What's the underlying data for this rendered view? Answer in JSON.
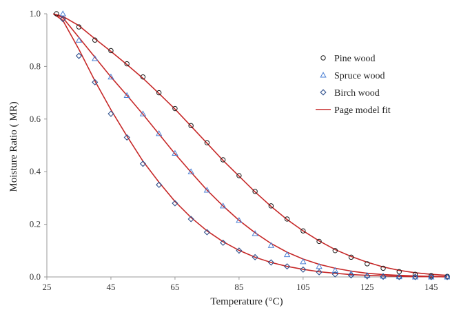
{
  "chart_data": {
    "type": "scatter",
    "title": "",
    "xlabel": "Temperature (°C)",
    "ylabel": "Moisture Ratio ( MR)",
    "xlim": [
      25,
      150
    ],
    "ylim": [
      0,
      1.0
    ],
    "x_ticks": [
      "25",
      "45",
      "65",
      "85",
      "105",
      "125",
      "145"
    ],
    "y_ticks": [
      "0.0",
      "0.2",
      "0.4",
      "0.6",
      "0.8",
      "1.0"
    ],
    "grid": false,
    "legend_position": "right",
    "series": [
      {
        "name": "Pine wood",
        "marker": "circle",
        "color": "#1a1a1a",
        "x": [
          28,
          35,
          40,
          45,
          50,
          55,
          60,
          65,
          70,
          75,
          80,
          85,
          90,
          95,
          100,
          105,
          110,
          115,
          120,
          125,
          130,
          135,
          140,
          145,
          150
        ],
        "y": [
          1.0,
          0.95,
          0.9,
          0.86,
          0.81,
          0.76,
          0.7,
          0.64,
          0.575,
          0.51,
          0.445,
          0.385,
          0.325,
          0.27,
          0.22,
          0.175,
          0.135,
          0.1,
          0.075,
          0.05,
          0.033,
          0.02,
          0.01,
          0.005,
          0.002
        ]
      },
      {
        "name": "Spruce wood",
        "marker": "triangle",
        "color": "#4a7fd4",
        "x": [
          30,
          35,
          40,
          45,
          50,
          55,
          60,
          65,
          70,
          75,
          80,
          85,
          90,
          95,
          100,
          105,
          110,
          115,
          120,
          125,
          130,
          135,
          140,
          145,
          150
        ],
        "y": [
          1.0,
          0.9,
          0.83,
          0.76,
          0.69,
          0.62,
          0.545,
          0.47,
          0.4,
          0.33,
          0.27,
          0.215,
          0.165,
          0.12,
          0.085,
          0.058,
          0.04,
          0.025,
          0.013,
          0.006,
          0.003,
          0.001,
          0.0,
          0.0,
          0.0
        ]
      },
      {
        "name": "Birch wood",
        "marker": "diamond",
        "color": "#2e4f8c",
        "x": [
          30,
          35,
          40,
          45,
          50,
          55,
          60,
          65,
          70,
          75,
          80,
          85,
          90,
          95,
          100,
          105,
          110,
          115,
          120,
          125,
          130,
          135,
          140,
          145,
          150
        ],
        "y": [
          0.98,
          0.84,
          0.74,
          0.62,
          0.53,
          0.43,
          0.35,
          0.28,
          0.22,
          0.17,
          0.13,
          0.1,
          0.075,
          0.055,
          0.04,
          0.028,
          0.018,
          0.01,
          0.006,
          0.003,
          0.001,
          0.0,
          0.0,
          0.0,
          0.0
        ]
      }
    ],
    "fit_lines": [
      {
        "name": "Page model fit",
        "color": "#c62828",
        "curves": [
          {
            "x": [
              27,
              30,
              35,
              40,
              45,
              50,
              55,
              60,
              65,
              70,
              75,
              80,
              85,
              90,
              95,
              100,
              105,
              110,
              115,
              120,
              125,
              130,
              135,
              140,
              145,
              150
            ],
            "y": [
              1.0,
              0.99,
              0.955,
              0.905,
              0.857,
              0.807,
              0.755,
              0.697,
              0.638,
              0.573,
              0.508,
              0.443,
              0.383,
              0.323,
              0.268,
              0.218,
              0.175,
              0.137,
              0.104,
              0.078,
              0.056,
              0.038,
              0.025,
              0.016,
              0.01,
              0.006
            ]
          },
          {
            "x": [
              27,
              30,
              35,
              40,
              45,
              50,
              55,
              60,
              65,
              70,
              75,
              80,
              85,
              90,
              95,
              100,
              105,
              110,
              115,
              120,
              125,
              130,
              135,
              140,
              145,
              150
            ],
            "y": [
              1.0,
              0.985,
              0.91,
              0.835,
              0.76,
              0.69,
              0.618,
              0.543,
              0.468,
              0.398,
              0.33,
              0.27,
              0.215,
              0.168,
              0.127,
              0.094,
              0.068,
              0.048,
              0.033,
              0.022,
              0.014,
              0.009,
              0.006,
              0.004,
              0.002,
              0.001
            ]
          },
          {
            "x": [
              27,
              30,
              35,
              40,
              45,
              50,
              55,
              60,
              65,
              70,
              75,
              80,
              85,
              90,
              95,
              100,
              105,
              110,
              115,
              120,
              125,
              130,
              135,
              140,
              145,
              150
            ],
            "y": [
              1.0,
              0.975,
              0.865,
              0.745,
              0.635,
              0.535,
              0.44,
              0.36,
              0.287,
              0.226,
              0.175,
              0.134,
              0.101,
              0.075,
              0.055,
              0.04,
              0.029,
              0.02,
              0.014,
              0.009,
              0.006,
              0.004,
              0.002,
              0.001,
              0.001,
              0.0
            ]
          }
        ]
      }
    ]
  }
}
